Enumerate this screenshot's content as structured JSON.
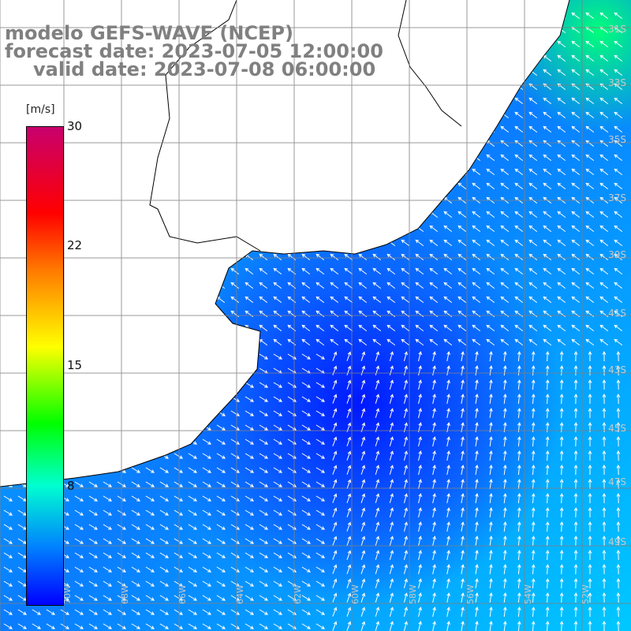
{
  "title": {
    "line1": "modelo GEFS-WAVE (NCEP)",
    "line2": "forecast date: 2023-07-05 12:00:00",
    "line3": "valid date: 2023-07-08 06:00:00"
  },
  "colorbar": {
    "unit": "[m/s]",
    "ticks": [
      "30",
      "22",
      "15",
      "8"
    ]
  },
  "lat_labels": [
    "31S",
    "33S",
    "35S",
    "37S",
    "39S",
    "41S",
    "43S",
    "45S",
    "47S",
    "49S"
  ],
  "lon_labels": [
    "70W",
    "68W",
    "66W",
    "64W",
    "62W",
    "60W",
    "58W",
    "56W",
    "54W",
    "52W"
  ],
  "colors": {
    "land": "#ffffff",
    "coast": "#000000",
    "grid": "#808080",
    "arrow": "#ffffff",
    "title": "#808080"
  }
}
